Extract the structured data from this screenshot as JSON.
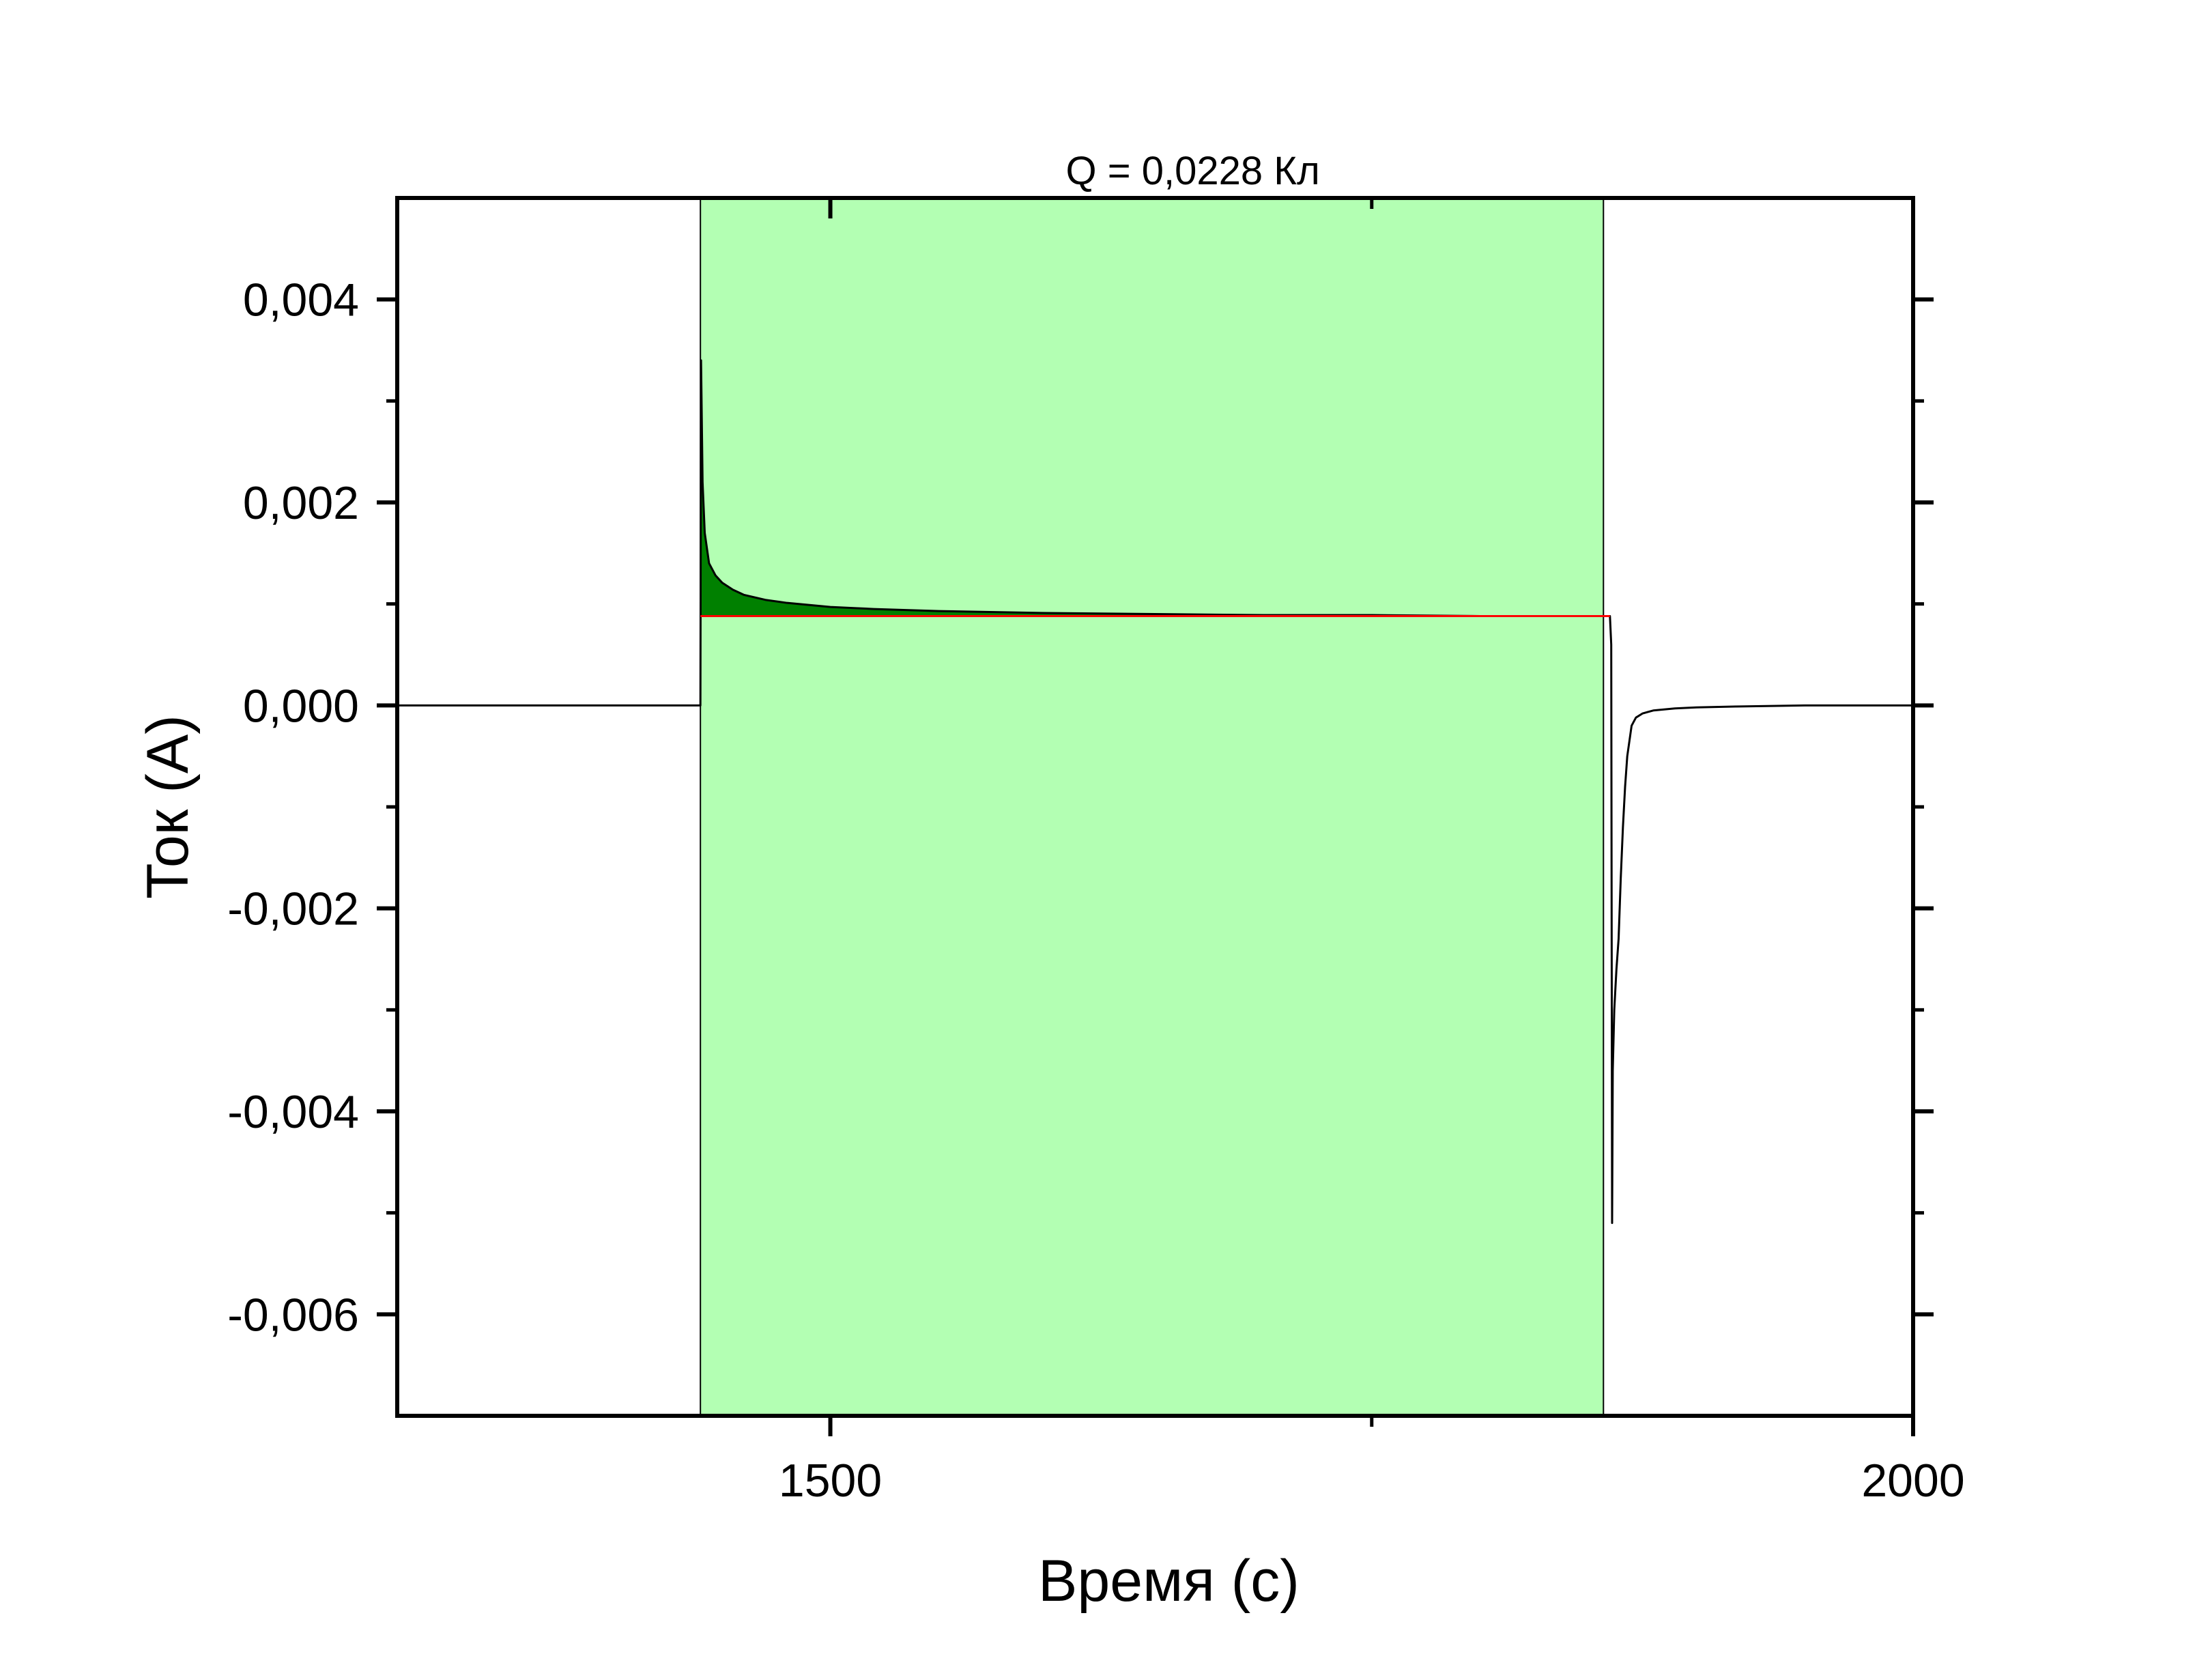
{
  "chart_data": {
    "type": "line",
    "xlabel": "Время (с)",
    "ylabel": "Ток (А)",
    "xlim": [
      1300,
      2000
    ],
    "ylim": [
      -0.007,
      0.005
    ],
    "x_ticks": [
      {
        "value": 1500,
        "label": "1500"
      },
      {
        "value": 2000,
        "label": "2000"
      }
    ],
    "x_minor_ticks": [
      1750
    ],
    "y_ticks": [
      {
        "value": 0.004,
        "label": "0,004"
      },
      {
        "value": 0.002,
        "label": "0,002"
      },
      {
        "value": 0.0,
        "label": "0,000"
      },
      {
        "value": -0.002,
        "label": "-0,002"
      },
      {
        "value": -0.004,
        "label": "-0,004"
      },
      {
        "value": -0.006,
        "label": "-0,006"
      }
    ],
    "y_minor_ticks": [
      0.003,
      0.001,
      -0.001,
      -0.003,
      -0.005
    ],
    "grid": false,
    "integration_region": {
      "x_start": 1440,
      "x_end": 1857,
      "baseline": 0.00088,
      "color": "#b3ffb3",
      "fill_color": "#008000",
      "baseline_color": "#ff0000",
      "label": "Q = 0,0228 Кл"
    },
    "series": [
      {
        "color": "#000000",
        "x": [
          1300,
          1439.5,
          1440,
          1440.3,
          1441,
          1442,
          1444,
          1447,
          1450,
          1455,
          1460,
          1470,
          1480,
          1500,
          1520,
          1550,
          1600,
          1650,
          1700,
          1750,
          1800,
          1857,
          1860,
          1860.6,
          1861,
          1861.3,
          1862,
          1863,
          1864,
          1865,
          1866,
          1867,
          1868,
          1870,
          1872,
          1875,
          1880,
          1890,
          1900,
          1920,
          1950,
          2000
        ],
        "y": [
          0,
          0,
          0,
          0.0034,
          0.0022,
          0.0017,
          0.0014,
          0.00128,
          0.00121,
          0.00114,
          0.00109,
          0.00104,
          0.00101,
          0.00097,
          0.00095,
          0.00093,
          0.00091,
          0.0009,
          0.00089,
          0.00089,
          0.00088,
          0.00088,
          0.00088,
          0.0006,
          -0.0051,
          -0.0036,
          -0.003,
          -0.0026,
          -0.0023,
          -0.0017,
          -0.0012,
          -0.0008,
          -0.0005,
          -0.0002,
          -0.00012,
          -8e-05,
          -5e-05,
          -3e-05,
          -2e-05,
          -1e-05,
          0,
          0
        ]
      }
    ]
  }
}
